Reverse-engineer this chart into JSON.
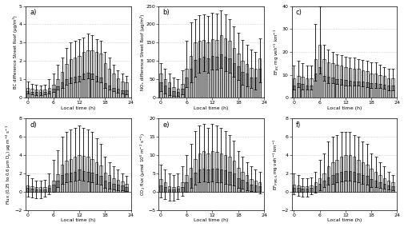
{
  "hours": [
    0,
    1,
    2,
    3,
    4,
    5,
    6,
    7,
    8,
    9,
    10,
    11,
    12,
    13,
    14,
    15,
    16,
    17,
    18,
    19,
    20,
    21,
    22,
    23
  ],
  "panels": [
    {
      "label": "a)",
      "ylabel": "BC difference Street Roof (μg/m³)",
      "ylim": [
        0,
        5
      ],
      "yticks": [
        0,
        1,
        2,
        3,
        4,
        5
      ],
      "bar1": [
        0.55,
        0.5,
        0.45,
        0.45,
        0.45,
        0.55,
        0.7,
        1.0,
        1.4,
        1.85,
        2.1,
        2.2,
        2.3,
        2.5,
        2.6,
        2.6,
        2.5,
        2.4,
        1.9,
        1.6,
        1.3,
        1.05,
        0.9,
        0.85
      ],
      "bar2": [
        0.35,
        0.32,
        0.3,
        0.3,
        0.3,
        0.38,
        0.48,
        0.62,
        0.82,
        1.0,
        1.1,
        1.15,
        1.2,
        1.3,
        1.35,
        1.3,
        1.2,
        1.1,
        0.8,
        0.68,
        0.55,
        0.48,
        0.42,
        0.4
      ],
      "err_top": [
        0.9,
        0.75,
        0.7,
        0.65,
        0.7,
        1.0,
        1.3,
        1.8,
        2.2,
        2.7,
        3.0,
        3.1,
        3.2,
        3.3,
        3.5,
        3.4,
        3.2,
        3.1,
        2.5,
        2.2,
        1.8,
        1.5,
        1.3,
        1.2
      ],
      "err_bot": [
        0.25,
        0.2,
        0.15,
        0.15,
        0.18,
        0.22,
        0.3,
        0.45,
        0.55,
        0.7,
        0.8,
        0.85,
        0.9,
        1.0,
        1.05,
        1.0,
        0.9,
        0.85,
        0.55,
        0.45,
        0.35,
        0.28,
        0.22,
        0.2
      ]
    },
    {
      "label": "b)",
      "ylabel": "NOₓ difference Street Roof (μg/m³)",
      "ylim": [
        0,
        250
      ],
      "yticks": [
        0,
        50,
        100,
        150,
        200,
        250
      ],
      "bar1": [
        65,
        50,
        42,
        30,
        25,
        38,
        80,
        115,
        150,
        155,
        158,
        152,
        160,
        158,
        170,
        162,
        155,
        135,
        120,
        100,
        92,
        82,
        78,
        108
      ],
      "bar2": [
        42,
        33,
        27,
        18,
        16,
        25,
        55,
        78,
        102,
        108,
        112,
        108,
        115,
        112,
        118,
        112,
        108,
        95,
        85,
        70,
        65,
        56,
        54,
        78
      ],
      "err_top": [
        95,
        78,
        65,
        55,
        50,
        75,
        155,
        205,
        215,
        225,
        228,
        222,
        232,
        230,
        238,
        228,
        215,
        195,
        178,
        158,
        145,
        132,
        125,
        162
      ],
      "err_bot": [
        18,
        12,
        8,
        5,
        4,
        10,
        28,
        42,
        58,
        68,
        72,
        68,
        76,
        76,
        82,
        72,
        68,
        58,
        48,
        36,
        32,
        26,
        22,
        42
      ]
    },
    {
      "label": "c)",
      "ylabel": "EF$_{BC}$ mg veh$^{-1}$ km$^{-1}$",
      "ylim": [
        0,
        40
      ],
      "yticks": [
        0,
        10,
        20,
        30,
        40
      ],
      "bar1": [
        8.5,
        9.5,
        9.0,
        8.5,
        8.5,
        17,
        23,
        17,
        15.5,
        15,
        14.5,
        14,
        13.5,
        13,
        12.5,
        12.5,
        12,
        11.5,
        10.5,
        10.5,
        10,
        9.5,
        8.5,
        8.5
      ],
      "bar2": [
        5.5,
        6.5,
        6.0,
        5.5,
        5.5,
        10.5,
        13.5,
        9.5,
        9.0,
        8.8,
        8.2,
        8.0,
        7.8,
        7.5,
        7.2,
        7.2,
        7.0,
        6.8,
        6.2,
        6.2,
        6.0,
        5.8,
        5.2,
        5.2
      ],
      "err_top": [
        14,
        16,
        15,
        14,
        14,
        32,
        40,
        23,
        21,
        20,
        19,
        18.5,
        18,
        17.5,
        17.5,
        17,
        16.5,
        16,
        15.5,
        15.5,
        14.5,
        13.5,
        12.5,
        12.5
      ],
      "err_bot": [
        3.5,
        4.5,
        3.5,
        3.5,
        3.5,
        7.5,
        10.5,
        7.5,
        6.5,
        6.5,
        6.0,
        5.8,
        5.5,
        5.2,
        5.2,
        5.2,
        5.0,
        4.8,
        4.2,
        4.2,
        4.2,
        3.8,
        3.2,
        3.2
      ]
    },
    {
      "label": "d)",
      "ylabel": "Flux (0.25 to 0.6 μm D$_p$) μg m$^{-2}$ s$^{-1}$",
      "ylim": [
        -2,
        8
      ],
      "yticks": [
        -2,
        0,
        2,
        4,
        6,
        8
      ],
      "bar1": [
        0.7,
        0.6,
        0.5,
        0.5,
        0.5,
        0.7,
        1.2,
        1.9,
        3.0,
        3.4,
        3.6,
        3.8,
        4.0,
        3.9,
        3.8,
        3.6,
        3.2,
        2.9,
        2.1,
        1.8,
        1.5,
        1.3,
        1.1,
        0.9
      ],
      "bar2": [
        0.4,
        0.35,
        0.28,
        0.28,
        0.3,
        0.45,
        0.8,
        1.2,
        1.8,
        2.0,
        2.1,
        2.2,
        2.4,
        2.3,
        2.2,
        2.1,
        1.9,
        1.7,
        1.2,
        1.05,
        0.9,
        0.75,
        0.65,
        0.55
      ],
      "err_top": [
        1.8,
        1.5,
        1.2,
        1.2,
        1.3,
        2.0,
        3.5,
        4.5,
        6.0,
        6.5,
        6.8,
        7.0,
        7.2,
        7.0,
        6.8,
        6.5,
        5.8,
        5.2,
        3.8,
        3.2,
        2.8,
        2.4,
        2.0,
        1.7
      ],
      "err_bot": [
        -0.5,
        -0.6,
        -0.7,
        -0.7,
        -0.5,
        -0.3,
        0.0,
        0.5,
        0.9,
        1.0,
        1.1,
        1.2,
        1.3,
        1.2,
        1.1,
        1.0,
        0.85,
        0.75,
        0.4,
        0.35,
        0.25,
        0.2,
        0.15,
        0.1
      ]
    },
    {
      "label": "e)",
      "ylabel": "CO$_2$ flux (μmol 10$^{6}$ m$^{-2}$ s$^{-1}$)",
      "ylim": [
        -5,
        20
      ],
      "yticks": [
        -5,
        0,
        5,
        10,
        15,
        20
      ],
      "bar1": [
        3.5,
        2.5,
        1.5,
        1.2,
        1.5,
        2.5,
        4.5,
        6.5,
        9.0,
        10.5,
        11.0,
        10.5,
        11.0,
        10.8,
        10.5,
        10.0,
        9.5,
        8.5,
        6.5,
        5.5,
        4.5,
        3.5,
        3.0,
        2.5
      ],
      "bar2": [
        1.8,
        1.2,
        0.7,
        0.6,
        0.8,
        1.4,
        2.5,
        3.8,
        5.2,
        6.0,
        6.3,
        6.0,
        6.3,
        6.2,
        6.0,
        5.8,
        5.5,
        5.0,
        3.8,
        3.2,
        2.6,
        2.0,
        1.8,
        1.5
      ],
      "err_top": [
        7.5,
        6.0,
        5.0,
        4.5,
        5.0,
        7.0,
        10.0,
        13.0,
        16.5,
        18.0,
        18.5,
        17.5,
        18.5,
        18.0,
        17.5,
        16.5,
        15.5,
        14.0,
        11.0,
        9.5,
        8.0,
        7.0,
        6.0,
        5.5
      ],
      "err_bot": [
        -1.5,
        -2.0,
        -2.5,
        -2.5,
        -2.0,
        -1.0,
        0.0,
        1.0,
        2.0,
        2.5,
        2.8,
        2.5,
        2.8,
        2.5,
        2.5,
        2.2,
        2.0,
        1.8,
        1.0,
        0.8,
        0.5,
        0.2,
        0.0,
        -0.5
      ]
    },
    {
      "label": "f)",
      "ylabel": "EF$_{PM0.6}$ mg veh$^{-1}$ km$^{-1}$",
      "ylim": [
        -2,
        8
      ],
      "yticks": [
        -2,
        0,
        2,
        4,
        6,
        8
      ],
      "bar1": [
        0.8,
        0.7,
        0.6,
        0.6,
        0.7,
        1.0,
        1.5,
        2.0,
        2.8,
        3.2,
        3.5,
        3.8,
        4.0,
        4.0,
        3.8,
        3.5,
        3.2,
        3.0,
        2.5,
        2.2,
        1.8,
        1.5,
        1.2,
        1.0
      ],
      "bar2": [
        0.45,
        0.4,
        0.35,
        0.35,
        0.4,
        0.6,
        0.9,
        1.2,
        1.6,
        1.8,
        2.0,
        2.2,
        2.3,
        2.3,
        2.2,
        2.0,
        1.85,
        1.7,
        1.4,
        1.25,
        1.0,
        0.85,
        0.7,
        0.58
      ],
      "err_top": [
        2.0,
        1.8,
        1.5,
        1.5,
        1.6,
        2.2,
        3.5,
        4.2,
        5.5,
        6.0,
        6.2,
        6.5,
        6.5,
        6.5,
        6.2,
        6.0,
        5.5,
        5.2,
        4.2,
        3.8,
        3.2,
        2.8,
        2.2,
        1.8
      ],
      "err_bot": [
        -0.3,
        -0.4,
        -0.5,
        -0.5,
        -0.3,
        -0.1,
        0.2,
        0.5,
        0.8,
        0.9,
        1.0,
        1.1,
        1.2,
        1.2,
        1.1,
        1.0,
        0.9,
        0.8,
        0.55,
        0.5,
        0.4,
        0.35,
        0.25,
        0.2
      ]
    }
  ],
  "bar_width": 0.65,
  "bar_color1": "white",
  "bar_color2": "#aaaaaa",
  "bar_edgecolor": "black",
  "errorbar_color": "black",
  "grid_color": "#aaaaaa",
  "xlabel": "Local time (h)",
  "xticks": [
    0,
    6,
    12,
    18,
    24
  ],
  "xlim": [
    -0.5,
    23.5
  ]
}
